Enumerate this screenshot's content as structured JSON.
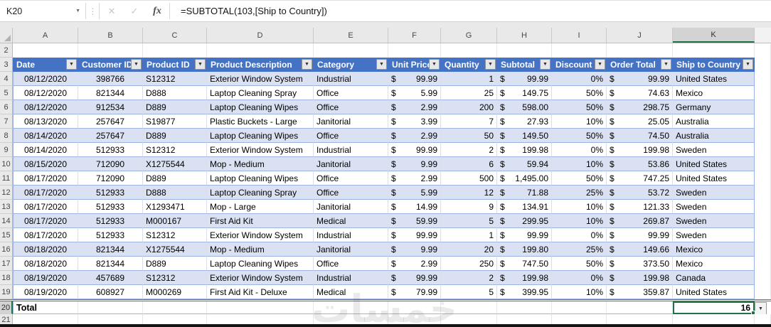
{
  "formula_bar": {
    "cell_reference": "K20",
    "formula": "=SUBTOTAL(103,[Ship to Country])"
  },
  "icons": {
    "namebox_dropdown": "▼",
    "more": "⋮",
    "cancel": "✕",
    "enter": "✓",
    "insert_function": "fx",
    "filter_dropdown": "▼",
    "total_dropdown": "▼"
  },
  "grid": {
    "column_letters": [
      "A",
      "B",
      "C",
      "D",
      "E",
      "F",
      "G",
      "H",
      "I",
      "J",
      "K"
    ],
    "row_numbers": [
      "2",
      "3",
      "4",
      "5",
      "6",
      "7",
      "8",
      "9",
      "10",
      "11",
      "12",
      "13",
      "14",
      "15",
      "16",
      "17",
      "18",
      "19",
      "20",
      "21"
    ],
    "selected_cell": "K20",
    "selected_column": "K",
    "selected_row": "20"
  },
  "table": {
    "headers": [
      "Date",
      "Customer ID",
      "Product ID",
      "Product Description",
      "Category",
      "Unit Price",
      "Quantity",
      "Subtotal",
      "Discount",
      "Order Total",
      "Ship to Country"
    ],
    "currency_symbol": "$",
    "rows": [
      [
        "08/12/2020",
        "398766",
        "S12312",
        "Exterior Window System",
        "Industrial",
        "99.99",
        "1",
        "99.99",
        "0%",
        "99.99",
        "United States"
      ],
      [
        "08/12/2020",
        "821344",
        "D888",
        "Laptop Cleaning Spray",
        "Office",
        "5.99",
        "25",
        "149.75",
        "50%",
        "74.63",
        "Mexico"
      ],
      [
        "08/12/2020",
        "912534",
        "D889",
        "Laptop Cleaning Wipes",
        "Office",
        "2.99",
        "200",
        "598.00",
        "50%",
        "298.75",
        "Germany"
      ],
      [
        "08/13/2020",
        "257647",
        "S19877",
        "Plastic Buckets - Large",
        "Janitorial",
        "3.99",
        "7",
        "27.93",
        "10%",
        "25.05",
        "Australia"
      ],
      [
        "08/14/2020",
        "257647",
        "D889",
        "Laptop Cleaning Wipes",
        "Office",
        "2.99",
        "50",
        "149.50",
        "50%",
        "74.50",
        "Australia"
      ],
      [
        "08/14/2020",
        "512933",
        "S12312",
        "Exterior Window System",
        "Industrial",
        "99.99",
        "2",
        "199.98",
        "0%",
        "199.98",
        "Sweden"
      ],
      [
        "08/15/2020",
        "712090",
        "X1275544",
        "Mop - Medium",
        "Janitorial",
        "9.99",
        "6",
        "59.94",
        "10%",
        "53.86",
        "United States"
      ],
      [
        "08/17/2020",
        "712090",
        "D889",
        "Laptop Cleaning Wipes",
        "Office",
        "2.99",
        "500",
        "1,495.00",
        "50%",
        "747.25",
        "United States"
      ],
      [
        "08/17/2020",
        "512933",
        "D888",
        "Laptop Cleaning Spray",
        "Office",
        "5.99",
        "12",
        "71.88",
        "25%",
        "53.72",
        "Sweden"
      ],
      [
        "08/17/2020",
        "512933",
        "X1293471",
        "Mop - Large",
        "Janitorial",
        "14.99",
        "9",
        "134.91",
        "10%",
        "121.33",
        "Sweden"
      ],
      [
        "08/17/2020",
        "512933",
        "M000167",
        "First Aid Kit",
        "Medical",
        "59.99",
        "5",
        "299.95",
        "10%",
        "269.87",
        "Sweden"
      ],
      [
        "08/17/2020",
        "512933",
        "S12312",
        "Exterior Window System",
        "Industrial",
        "99.99",
        "1",
        "99.99",
        "0%",
        "99.99",
        "Sweden"
      ],
      [
        "08/18/2020",
        "821344",
        "X1275544",
        "Mop - Medium",
        "Janitorial",
        "9.99",
        "20",
        "199.80",
        "25%",
        "149.66",
        "Mexico"
      ],
      [
        "08/18/2020",
        "821344",
        "D889",
        "Laptop Cleaning Wipes",
        "Office",
        "2.99",
        "250",
        "747.50",
        "50%",
        "373.50",
        "Mexico"
      ],
      [
        "08/19/2020",
        "457689",
        "S12312",
        "Exterior Window System",
        "Industrial",
        "99.99",
        "2",
        "199.98",
        "0%",
        "199.98",
        "Canada"
      ],
      [
        "08/19/2020",
        "608927",
        "M000269",
        "First Aid Kit - Deluxe",
        "Medical",
        "79.99",
        "5",
        "399.95",
        "10%",
        "359.87",
        "United States"
      ]
    ],
    "total_row": {
      "label": "Total",
      "value": "16"
    }
  },
  "watermark": "خمسات",
  "colors": {
    "table_header": "#4472C4",
    "banded_row": "#D9E1F2",
    "row_border": "#9DB2DC",
    "selection_green": "#217346"
  }
}
